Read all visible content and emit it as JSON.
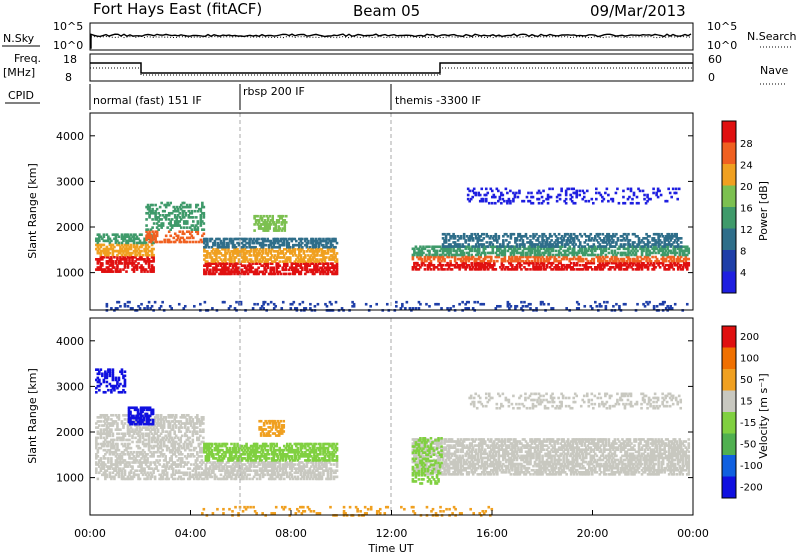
{
  "header": {
    "station": "Fort Hays East (fitACF)",
    "beam": "Beam 05",
    "date": "09/Mar/2013"
  },
  "top_panel": {
    "left_label": "N.Sky",
    "left_ticks": [
      "10^5",
      "10^0"
    ],
    "right_label": "N.Search",
    "right_ticks": [
      "10^5",
      "10^0"
    ]
  },
  "freq_panel": {
    "left_label_1": "Freq.",
    "left_label_2": "[MHz]",
    "left_ticks": [
      "18",
      "8"
    ],
    "right_label": "Nave",
    "right_ticks": [
      "60",
      "0"
    ]
  },
  "cpid": {
    "label": "CPID",
    "segments": [
      {
        "text": "normal (fast) 151 IF",
        "start_hour": 0,
        "end_hour": 6
      },
      {
        "text": "rbsp 200 IF",
        "start_hour": 6,
        "end_hour": 12
      },
      {
        "text": "themis -3300 IF",
        "start_hour": 12,
        "end_hour": 24
      }
    ]
  },
  "colors": {
    "power": [
      "#1f1fe0",
      "#1f3fa8",
      "#2f6e8a",
      "#3f9a6a",
      "#7cc050",
      "#f0a020",
      "#f06020",
      "#e01010"
    ],
    "velocity": [
      "#1010e0",
      "#1060e0",
      "#50b050",
      "#80d040",
      "#c8c8c0",
      "#f0a020",
      "#f07000",
      "#e01010"
    ],
    "ground": "#c8c8c0"
  },
  "chart_data": [
    {
      "type": "heatmap",
      "name": "power",
      "xlabel": "",
      "ylabel": "Slant Range [km]",
      "xlim": [
        0,
        24
      ],
      "ylim": [
        180,
        4500
      ],
      "yticks": [
        1000,
        2000,
        3000,
        4000
      ],
      "colorbar": {
        "label": "Power [dB]",
        "ticks": [
          "28",
          "24",
          "20",
          "16",
          "12",
          "8",
          "4"
        ],
        "range": [
          0,
          30
        ]
      }
    },
    {
      "type": "heatmap",
      "name": "velocity",
      "xlabel": "Time UT",
      "ylabel": "Slant Range [km]",
      "xlim": [
        0,
        24
      ],
      "ylim": [
        180,
        4500
      ],
      "xticks": [
        "00:00",
        "04:00",
        "08:00",
        "12:00",
        "16:00",
        "20:00",
        "00:00"
      ],
      "yticks": [
        1000,
        2000,
        3000,
        4000
      ],
      "colorbar": {
        "label": "Velocity [m s⁻¹]",
        "ticks": [
          "200",
          "100",
          "50",
          "15",
          "-15",
          "-50",
          "-100",
          "-200"
        ],
        "range": [
          -250,
          250
        ]
      }
    }
  ]
}
